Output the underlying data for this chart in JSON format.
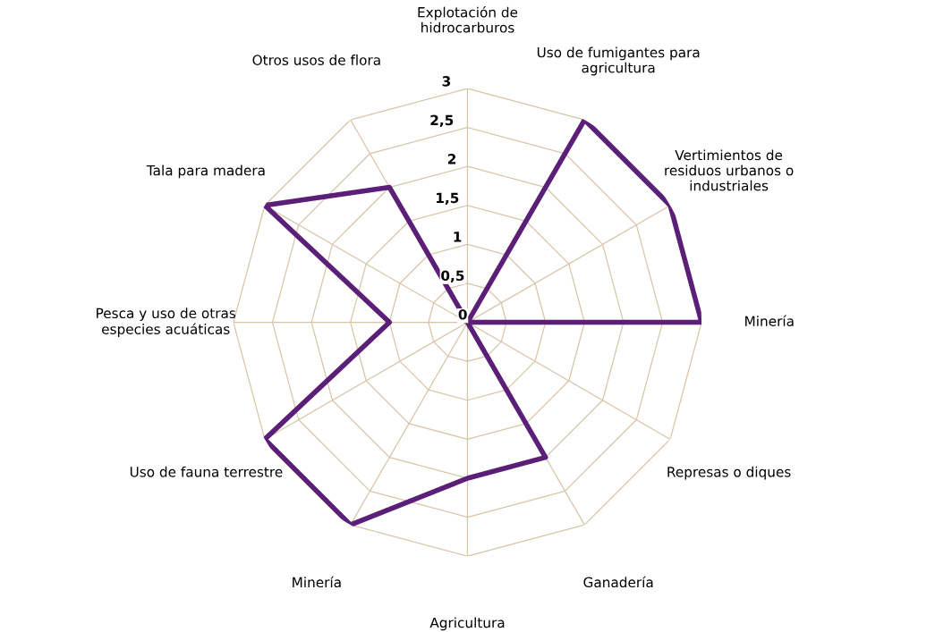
{
  "chart_data": {
    "type": "radar",
    "categories": [
      "Explotación de\nhidrocarburos",
      "Uso de fumigantes para\nagricultura",
      "Vertimientos de\nresiduos urbanos o\nindustriales",
      "Minería",
      "Represas o diques",
      "Ganadería",
      "Agricultura",
      "Minería",
      "Uso de fauna terrestre",
      "Pesca y uso de otras\nespecies acuáticas",
      "Tala para madera",
      "Otros usos de flora"
    ],
    "series": [
      {
        "color": "#5b1f78",
        "values": [
          0,
          3,
          3,
          3,
          0,
          2,
          2,
          3,
          3,
          1,
          3,
          2
        ]
      }
    ],
    "ylim": [
      0,
      3
    ],
    "yticks": [
      0,
      {
        "value": 0.5,
        "label": "0,5"
      },
      1,
      {
        "value": 1.5,
        "label": "1,5"
      },
      2,
      {
        "value": 2.5,
        "label": "2,5"
      },
      3
    ],
    "grid": true,
    "marker": "none",
    "line_style": "solid"
  }
}
